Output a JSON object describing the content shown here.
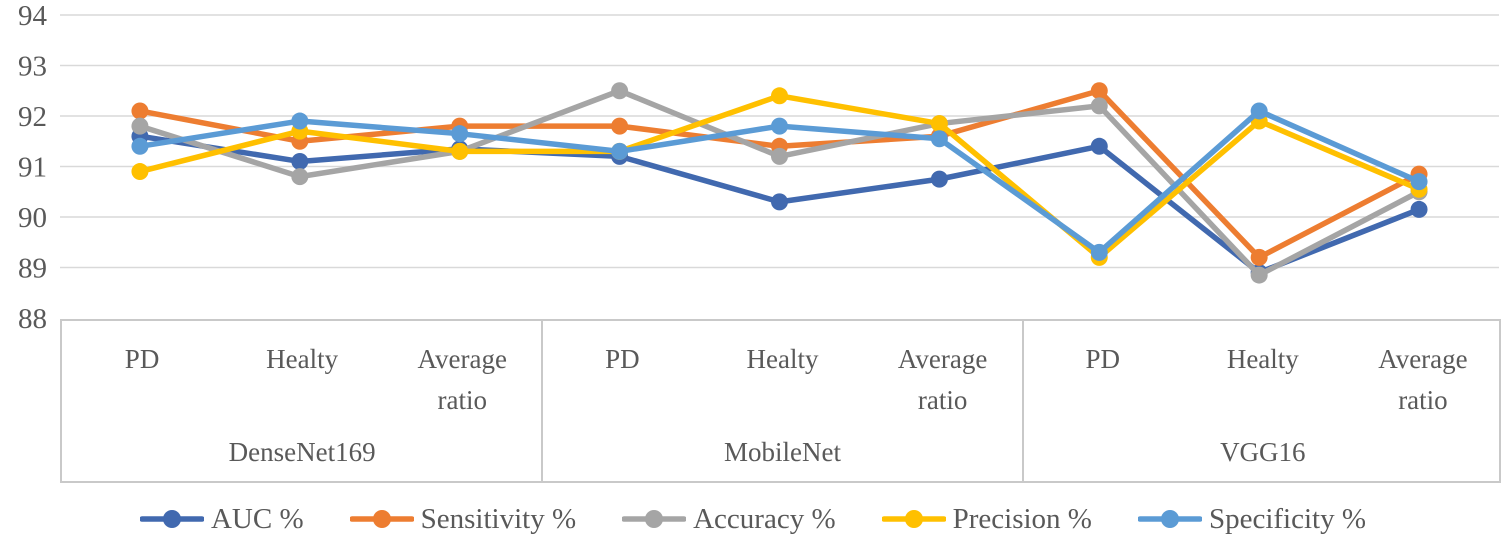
{
  "chart_data": {
    "type": "line",
    "title": "",
    "xlabel": "",
    "ylabel": "",
    "ylim": [
      88,
      94
    ],
    "yticks": [
      94,
      93,
      92,
      91,
      90,
      89,
      88
    ],
    "grid": true,
    "legend_position": "bottom",
    "groups": [
      {
        "label": "DenseNet169",
        "categories": [
          "PD",
          "Healty",
          "Average ratio"
        ]
      },
      {
        "label": "MobileNet",
        "categories": [
          "PD",
          "Healty",
          "Average ratio"
        ]
      },
      {
        "label": "VGG16",
        "categories": [
          "PD",
          "Healty",
          "Average ratio"
        ]
      }
    ],
    "categories": [
      "PD",
      "Healty",
      "Average ratio",
      "PD",
      "Healty",
      "Average ratio",
      "PD",
      "Healty",
      "Average ratio"
    ],
    "series": [
      {
        "name": "AUC %",
        "color": "#4169af",
        "values": [
          91.6,
          91.1,
          91.35,
          91.2,
          90.3,
          90.75,
          91.4,
          88.9,
          90.15
        ]
      },
      {
        "name": "Sensitivity %",
        "color": "#ed7d31",
        "values": [
          92.1,
          91.5,
          91.8,
          91.8,
          91.4,
          91.6,
          92.5,
          89.2,
          90.85
        ]
      },
      {
        "name": "Accuracy %",
        "color": "#a5a5a5",
        "values": [
          91.8,
          90.8,
          91.3,
          92.5,
          91.2,
          91.85,
          92.2,
          88.85,
          90.5
        ]
      },
      {
        "name": "Precision %",
        "color": "#ffc000",
        "values": [
          90.9,
          91.7,
          91.3,
          91.3,
          92.4,
          91.85,
          89.2,
          91.9,
          90.55
        ]
      },
      {
        "name": "Specificity %",
        "color": "#5b9bd5",
        "values": [
          91.4,
          91.9,
          91.65,
          91.3,
          91.8,
          91.55,
          89.3,
          92.1,
          90.7
        ]
      }
    ]
  },
  "colors": {
    "grid": "#d9d9d9",
    "axis_text": "#595959",
    "table_border": "#c9c9c9",
    "background": "#ffffff"
  }
}
